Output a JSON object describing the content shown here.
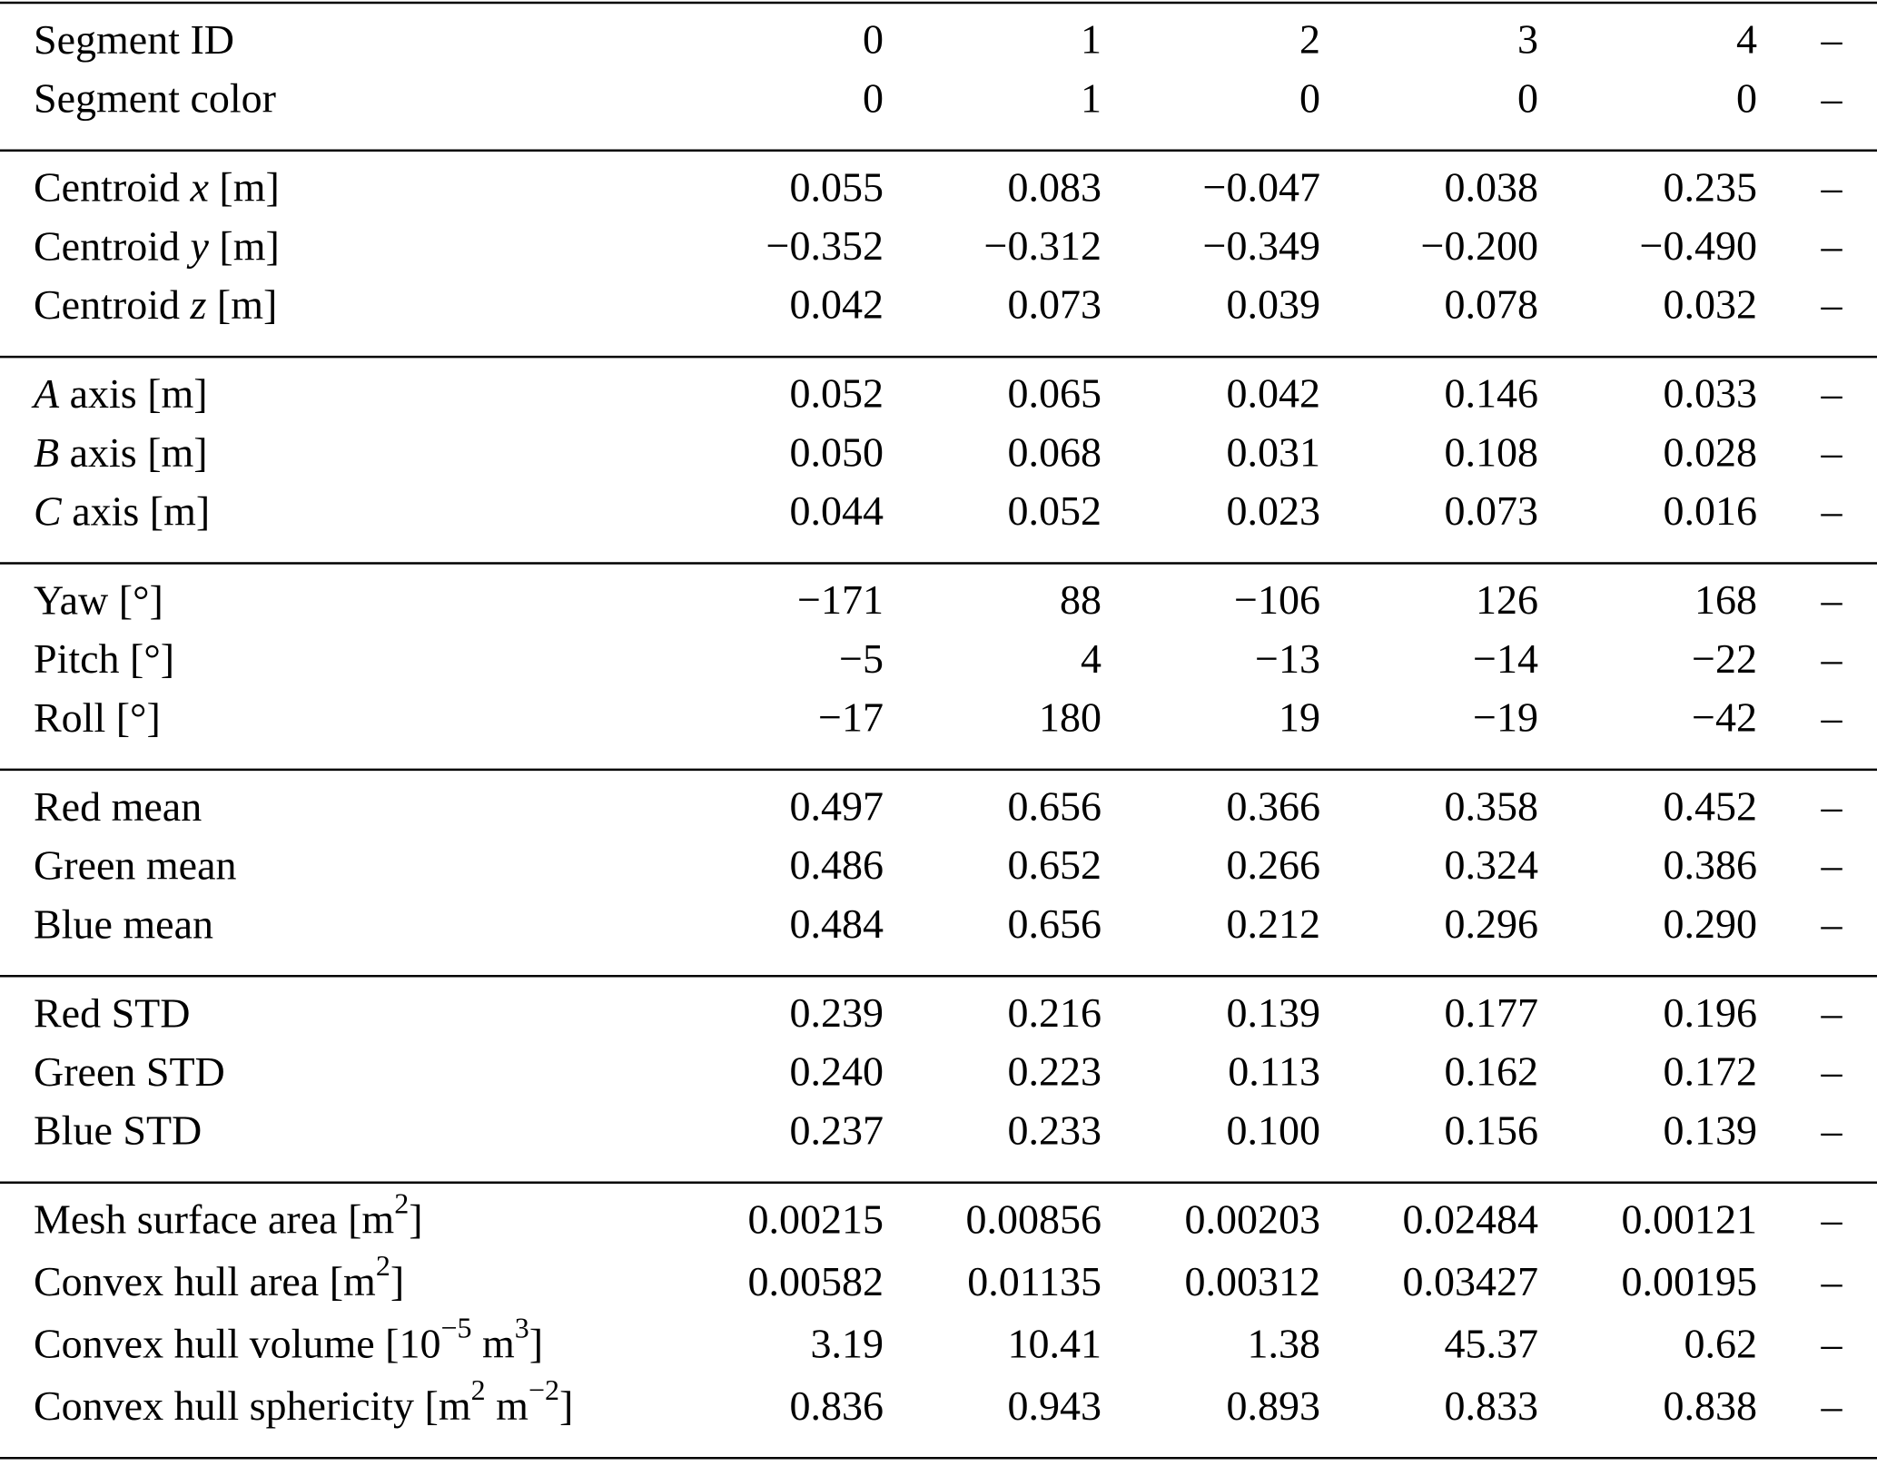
{
  "table": {
    "groups": [
      {
        "rows": [
          {
            "label": [
              "Segment ID"
            ],
            "cells": [
              "0",
              "1",
              "2",
              "3",
              "4",
              "–"
            ]
          },
          {
            "label": [
              "Segment color"
            ],
            "cells": [
              "0",
              "1",
              "0",
              "0",
              "0",
              "–"
            ]
          }
        ]
      },
      {
        "rows": [
          {
            "label": [
              "Centroid ",
              {
                "text": "x",
                "style": "italic"
              },
              " [m]"
            ],
            "cells": [
              "0.055",
              "0.083",
              "−0.047",
              "0.038",
              "0.235",
              "–"
            ]
          },
          {
            "label": [
              "Centroid ",
              {
                "text": "y",
                "style": "italic"
              },
              " [m]"
            ],
            "cells": [
              "−0.352",
              "−0.312",
              "−0.349",
              "−0.200",
              "−0.490",
              "–"
            ]
          },
          {
            "label": [
              "Centroid ",
              {
                "text": "z",
                "style": "italic"
              },
              " [m]"
            ],
            "cells": [
              "0.042",
              "0.073",
              "0.039",
              "0.078",
              "0.032",
              "–"
            ]
          }
        ]
      },
      {
        "rows": [
          {
            "label": [
              {
                "text": "A",
                "style": "italic"
              },
              " axis [m]"
            ],
            "cells": [
              "0.052",
              "0.065",
              "0.042",
              "0.146",
              "0.033",
              "–"
            ]
          },
          {
            "label": [
              {
                "text": "B",
                "style": "italic"
              },
              " axis [m]"
            ],
            "cells": [
              "0.050",
              "0.068",
              "0.031",
              "0.108",
              "0.028",
              "–"
            ]
          },
          {
            "label": [
              {
                "text": "C",
                "style": "italic"
              },
              " axis [m]"
            ],
            "cells": [
              "0.044",
              "0.052",
              "0.023",
              "0.073",
              "0.016",
              "–"
            ]
          }
        ]
      },
      {
        "rows": [
          {
            "label": [
              "Yaw [°]"
            ],
            "cells": [
              "−171",
              "88",
              "−106",
              "126",
              "168",
              "–"
            ]
          },
          {
            "label": [
              "Pitch [°]"
            ],
            "cells": [
              "−5",
              "4",
              "−13",
              "−14",
              "−22",
              "–"
            ]
          },
          {
            "label": [
              "Roll [°]"
            ],
            "cells": [
              "−17",
              "180",
              "19",
              "−19",
              "−42",
              "–"
            ]
          }
        ]
      },
      {
        "rows": [
          {
            "label": [
              "Red mean"
            ],
            "cells": [
              "0.497",
              "0.656",
              "0.366",
              "0.358",
              "0.452",
              "–"
            ]
          },
          {
            "label": [
              "Green mean"
            ],
            "cells": [
              "0.486",
              "0.652",
              "0.266",
              "0.324",
              "0.386",
              "–"
            ]
          },
          {
            "label": [
              "Blue mean"
            ],
            "cells": [
              "0.484",
              "0.656",
              "0.212",
              "0.296",
              "0.290",
              "–"
            ]
          }
        ]
      },
      {
        "rows": [
          {
            "label": [
              "Red STD"
            ],
            "cells": [
              "0.239",
              "0.216",
              "0.139",
              "0.177",
              "0.196",
              "–"
            ]
          },
          {
            "label": [
              "Green STD"
            ],
            "cells": [
              "0.240",
              "0.223",
              "0.113",
              "0.162",
              "0.172",
              "–"
            ]
          },
          {
            "label": [
              "Blue STD"
            ],
            "cells": [
              "0.237",
              "0.233",
              "0.100",
              "0.156",
              "0.139",
              "–"
            ]
          }
        ]
      },
      {
        "rows": [
          {
            "label": [
              "Mesh surface area [m",
              {
                "text": "2",
                "style": "sup"
              },
              "]"
            ],
            "cells": [
              "0.00215",
              "0.00856",
              "0.00203",
              "0.02484",
              "0.00121",
              "–"
            ]
          },
          {
            "label": [
              "Convex hull area [m",
              {
                "text": "2",
                "style": "sup"
              },
              "]"
            ],
            "cells": [
              "0.00582",
              "0.01135",
              "0.00312",
              "0.03427",
              "0.00195",
              "–"
            ]
          },
          {
            "label": [
              "Convex hull volume [10",
              {
                "text": "−5",
                "style": "sup"
              },
              " m",
              {
                "text": "3",
                "style": "sup"
              },
              "]"
            ],
            "cells": [
              "3.19",
              "10.41",
              "1.38",
              "45.37",
              "0.62",
              "–"
            ]
          },
          {
            "label": [
              "Convex hull sphericity [m",
              {
                "text": "2",
                "style": "sup"
              },
              " m",
              {
                "text": "−2",
                "style": "sup"
              },
              "]"
            ],
            "cells": [
              "0.836",
              "0.943",
              "0.893",
              "0.833",
              "0.838",
              "–"
            ]
          }
        ]
      }
    ]
  }
}
